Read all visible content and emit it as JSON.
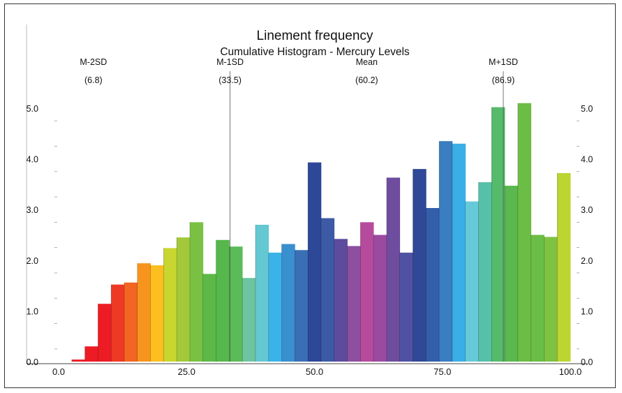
{
  "chart_data": {
    "type": "bar",
    "title": "Linement frequency",
    "subtitle": "Cumulative Histogram - Mercury Levels",
    "xlim": [
      0,
      100
    ],
    "ylim": [
      0,
      5
    ],
    "x_ticks": [
      {
        "value": 0,
        "label": "0.0"
      },
      {
        "value": 25,
        "label": "25.0"
      },
      {
        "value": 50,
        "label": "50.0"
      },
      {
        "value": 75,
        "label": "75.0"
      },
      {
        "value": 100,
        "label": "100.0"
      }
    ],
    "y_ticks": [
      {
        "value": 0,
        "label": "0.0"
      },
      {
        "value": 1,
        "label": "1.0"
      },
      {
        "value": 2,
        "label": "2.0"
      },
      {
        "value": 3,
        "label": "3.0"
      },
      {
        "value": 4,
        "label": "4.0"
      },
      {
        "value": 5,
        "label": "5.0"
      }
    ],
    "bin_width": 2.5,
    "bins": [
      {
        "start": 0.0,
        "value": 0.04,
        "color": "#ed1c24"
      },
      {
        "start": 2.5,
        "value": 0.3,
        "color": "#ed1c24"
      },
      {
        "start": 5.0,
        "value": 1.14,
        "color": "#ed1c24"
      },
      {
        "start": 7.5,
        "value": 1.52,
        "color": "#ee3a24"
      },
      {
        "start": 10.0,
        "value": 1.56,
        "color": "#f26522"
      },
      {
        "start": 12.5,
        "value": 1.94,
        "color": "#f7941d"
      },
      {
        "start": 15.0,
        "value": 1.9,
        "color": "#fdbf1f"
      },
      {
        "start": 17.5,
        "value": 2.24,
        "color": "#c9d630"
      },
      {
        "start": 20.0,
        "value": 2.45,
        "color": "#a3c93a"
      },
      {
        "start": 22.5,
        "value": 2.75,
        "color": "#7ac143"
      },
      {
        "start": 25.0,
        "value": 1.73,
        "color": "#5cb947"
      },
      {
        "start": 27.5,
        "value": 2.4,
        "color": "#55b74c"
      },
      {
        "start": 30.0,
        "value": 2.27,
        "color": "#5bbb58"
      },
      {
        "start": 32.5,
        "value": 1.65,
        "color": "#6cc5a0"
      },
      {
        "start": 35.0,
        "value": 2.7,
        "color": "#64c8d3"
      },
      {
        "start": 37.5,
        "value": 2.15,
        "color": "#3ab4e8"
      },
      {
        "start": 40.0,
        "value": 2.32,
        "color": "#3a8fce"
      },
      {
        "start": 42.5,
        "value": 2.2,
        "color": "#3a6fb5"
      },
      {
        "start": 45.0,
        "value": 3.93,
        "color": "#2e4898"
      },
      {
        "start": 47.5,
        "value": 2.83,
        "color": "#3c5aa5"
      },
      {
        "start": 50.0,
        "value": 2.42,
        "color": "#5d4b9e"
      },
      {
        "start": 52.5,
        "value": 2.28,
        "color": "#8d4fa0"
      },
      {
        "start": 55.0,
        "value": 2.75,
        "color": "#b64b9e"
      },
      {
        "start": 57.5,
        "value": 2.5,
        "color": "#9b4aa0"
      },
      {
        "start": 60.0,
        "value": 3.63,
        "color": "#6e4d9f"
      },
      {
        "start": 62.5,
        "value": 2.15,
        "color": "#4f52a3"
      },
      {
        "start": 65.0,
        "value": 3.8,
        "color": "#2f4897"
      },
      {
        "start": 67.5,
        "value": 3.03,
        "color": "#335ea9"
      },
      {
        "start": 70.0,
        "value": 4.35,
        "color": "#3a7dc0"
      },
      {
        "start": 72.5,
        "value": 4.3,
        "color": "#3aaee6"
      },
      {
        "start": 75.0,
        "value": 3.16,
        "color": "#66c9d9"
      },
      {
        "start": 77.5,
        "value": 3.54,
        "color": "#57c0a8"
      },
      {
        "start": 80.0,
        "value": 5.02,
        "color": "#55bb6b"
      },
      {
        "start": 82.5,
        "value": 3.47,
        "color": "#5ab84e"
      },
      {
        "start": 85.0,
        "value": 5.1,
        "color": "#6cbd45"
      },
      {
        "start": 87.5,
        "value": 2.5,
        "color": "#6abd45"
      },
      {
        "start": 90.0,
        "value": 2.46,
        "color": "#7ec242"
      },
      {
        "start": 92.5,
        "value": 3.72,
        "color": "#bcd531"
      }
    ],
    "reference_lines": [
      {
        "label": "M-2SD",
        "value_label": "(6.8)",
        "x": 6.8
      },
      {
        "label": "M-1SD",
        "value_label": "(33.5)",
        "x": 33.5
      },
      {
        "label": "Mean",
        "value_label": "(60.2)",
        "x": 60.2
      },
      {
        "label": "M+1SD",
        "value_label": "(86.9)",
        "x": 86.9
      }
    ]
  }
}
